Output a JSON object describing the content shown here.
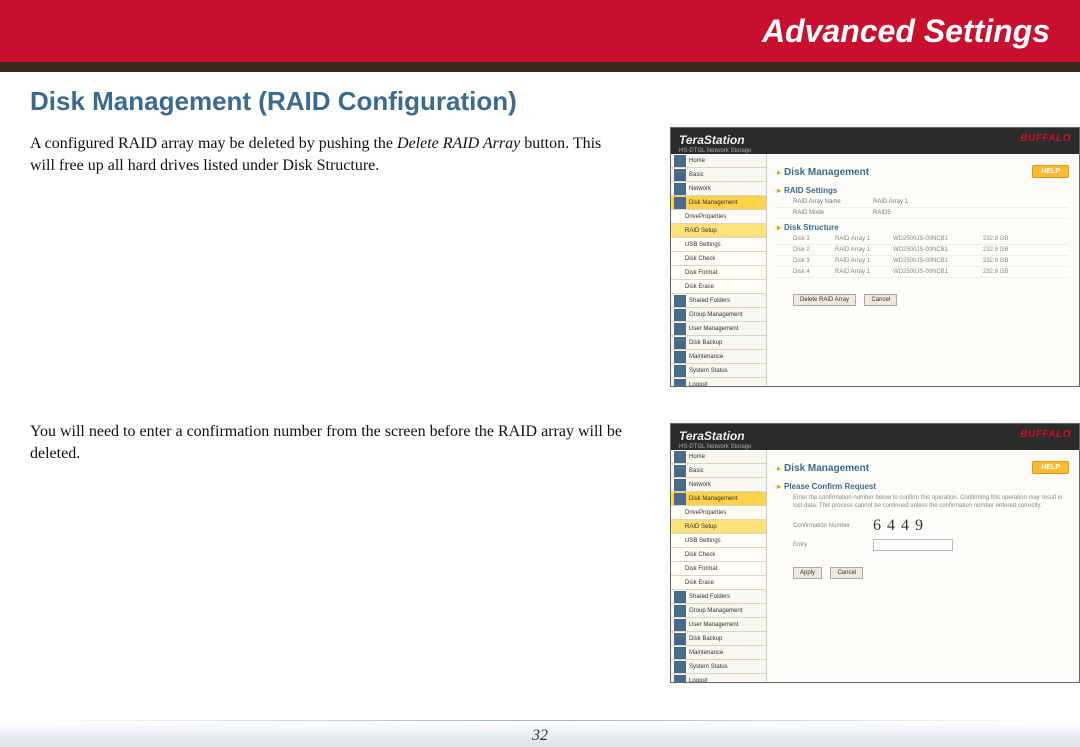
{
  "header": {
    "title": "Advanced Settings"
  },
  "section_title": "Disk Management (RAID Configuration)",
  "para1_a": "A configured RAID array may be deleted by pushing the ",
  "para1_italic": "Delete RAID Array",
  "para1_b": " button.  This will free up all hard drives listed under Disk Structure.",
  "para2": "You will need to enter a confirmation number from the screen before the RAID array will be deleted.",
  "page_number": "32",
  "shot_common": {
    "brand": "TeraStation",
    "sub": "HS-DTGL Network Storage",
    "logo": "BUFFALO",
    "main_title": "Disk Management",
    "help": "HELP"
  },
  "sidebar": {
    "items": [
      "Home",
      "Basic",
      "Network",
      "Disk Management",
      "DriveProperties",
      "RAID Setup",
      "USB Settings",
      "Disk Check",
      "Disk Format",
      "Disk Erase",
      "Shared Folders",
      "Group Management",
      "User Management",
      "Disk Backup",
      "Maintenance",
      "System Status",
      "Logout"
    ],
    "active_main_idx": 3,
    "active_sub_idx": 5
  },
  "shot1": {
    "raid_settings_title": "RAID Settings",
    "raid_settings": [
      {
        "k": "RAID Array Name",
        "v": "RAID Array 1"
      },
      {
        "k": "RAID Mode",
        "v": "RAID5"
      }
    ],
    "disk_structure_title": "Disk Structure",
    "disks": [
      {
        "d": "Disk 1",
        "a": "RAID Array 1",
        "m": "WD2500JS-00NCB1",
        "s": "232.9 GB"
      },
      {
        "d": "Disk 2",
        "a": "RAID Array 1",
        "m": "WD2500JS-00NCB1",
        "s": "232.9 GB"
      },
      {
        "d": "Disk 3",
        "a": "RAID Array 1",
        "m": "WD2500JS-00NCB1",
        "s": "232.9 GB"
      },
      {
        "d": "Disk 4",
        "a": "RAID Array 1",
        "m": "WD2500JS-00NCB1",
        "s": "232.9 GB"
      }
    ],
    "btn_delete": "Delete RAID Array",
    "btn_cancel": "Cancel"
  },
  "shot2": {
    "confirm_title": "Please Confirm Request",
    "confirm_text": "Enter the confirmation number below to confirm this operation. Confirming this operation may result in lost data. This process cannot be continued unless the confirmation number entered correctly.",
    "confirm_label": "Confirmation Number",
    "confirm_number": "6449",
    "entry_label": "Entry",
    "btn_apply": "Apply",
    "btn_cancel": "Cancel"
  },
  "colors": {
    "red_band": "#c8102e",
    "section_blue": "#3b6a8f",
    "highlight_yellow": "#ffd24a"
  }
}
